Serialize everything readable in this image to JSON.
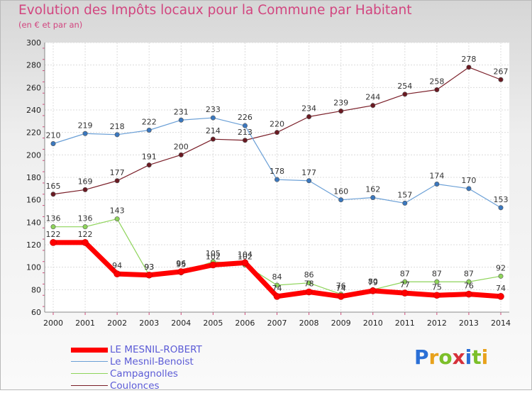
{
  "header": {
    "title": "Evolution des Impôts locaux pour la Commune par Habitant",
    "subtitle": "(en € et par an)"
  },
  "logo": {
    "text": "Proxiti",
    "letters": [
      "P",
      "r",
      "o",
      "x",
      "i",
      "t",
      "i"
    ],
    "colors": [
      "#2a6fd6",
      "#e8a21c",
      "#7cbf2a",
      "#d6303a",
      "#2a6fd6",
      "#7cbf2a",
      "#e8a21c"
    ]
  },
  "chart_data": {
    "type": "line",
    "title": "Evolution des Impôts locaux pour la Commune par Habitant",
    "subtitle": "(en € et par an)",
    "x": [
      "2000",
      "2001",
      "2002",
      "2003",
      "2004",
      "2005",
      "2006",
      "2007",
      "2008",
      "2009",
      "2010",
      "2011",
      "2012",
      "2013",
      "2014"
    ],
    "ylim": [
      60,
      300
    ],
    "yticks": [
      60,
      80,
      100,
      120,
      140,
      160,
      180,
      200,
      220,
      240,
      260,
      280,
      300
    ],
    "grid": true,
    "legend_position": "bottom-left",
    "series": [
      {
        "name": "Couloncés",
        "color": "#7a1e28",
        "marker": "#6a1a22",
        "width": 1.2,
        "values": [
          165,
          169,
          177,
          191,
          200,
          214,
          213,
          220,
          234,
          239,
          244,
          254,
          258,
          278,
          267
        ]
      },
      {
        "name": "Le Mesnil-Benoist",
        "color": "#6a9fd6",
        "marker": "#3b78bf",
        "width": 1.2,
        "values": [
          210,
          219,
          218,
          222,
          231,
          233,
          226,
          178,
          177,
          160,
          162,
          157,
          174,
          170,
          153
        ]
      },
      {
        "name": "Campagnolles",
        "color": "#8ed45a",
        "marker": "#8ed45a",
        "width": 1.2,
        "values": [
          136,
          136,
          143,
          93,
          95,
          105,
          102,
          84,
          86,
          76,
          80,
          87,
          87,
          87,
          92
        ]
      },
      {
        "name": "LE MESNIL-ROBERT",
        "color": "#ff0000",
        "marker": "#ff0000",
        "width": 7,
        "values": [
          122,
          122,
          94,
          93,
          96,
          102,
          104,
          74,
          78,
          74,
          79,
          77,
          75,
          76,
          74
        ]
      }
    ],
    "legend_order": [
      "LE MESNIL-ROBERT",
      "Le Mesnil-Benoist",
      "Campagnolles",
      "Coulonces"
    ]
  }
}
